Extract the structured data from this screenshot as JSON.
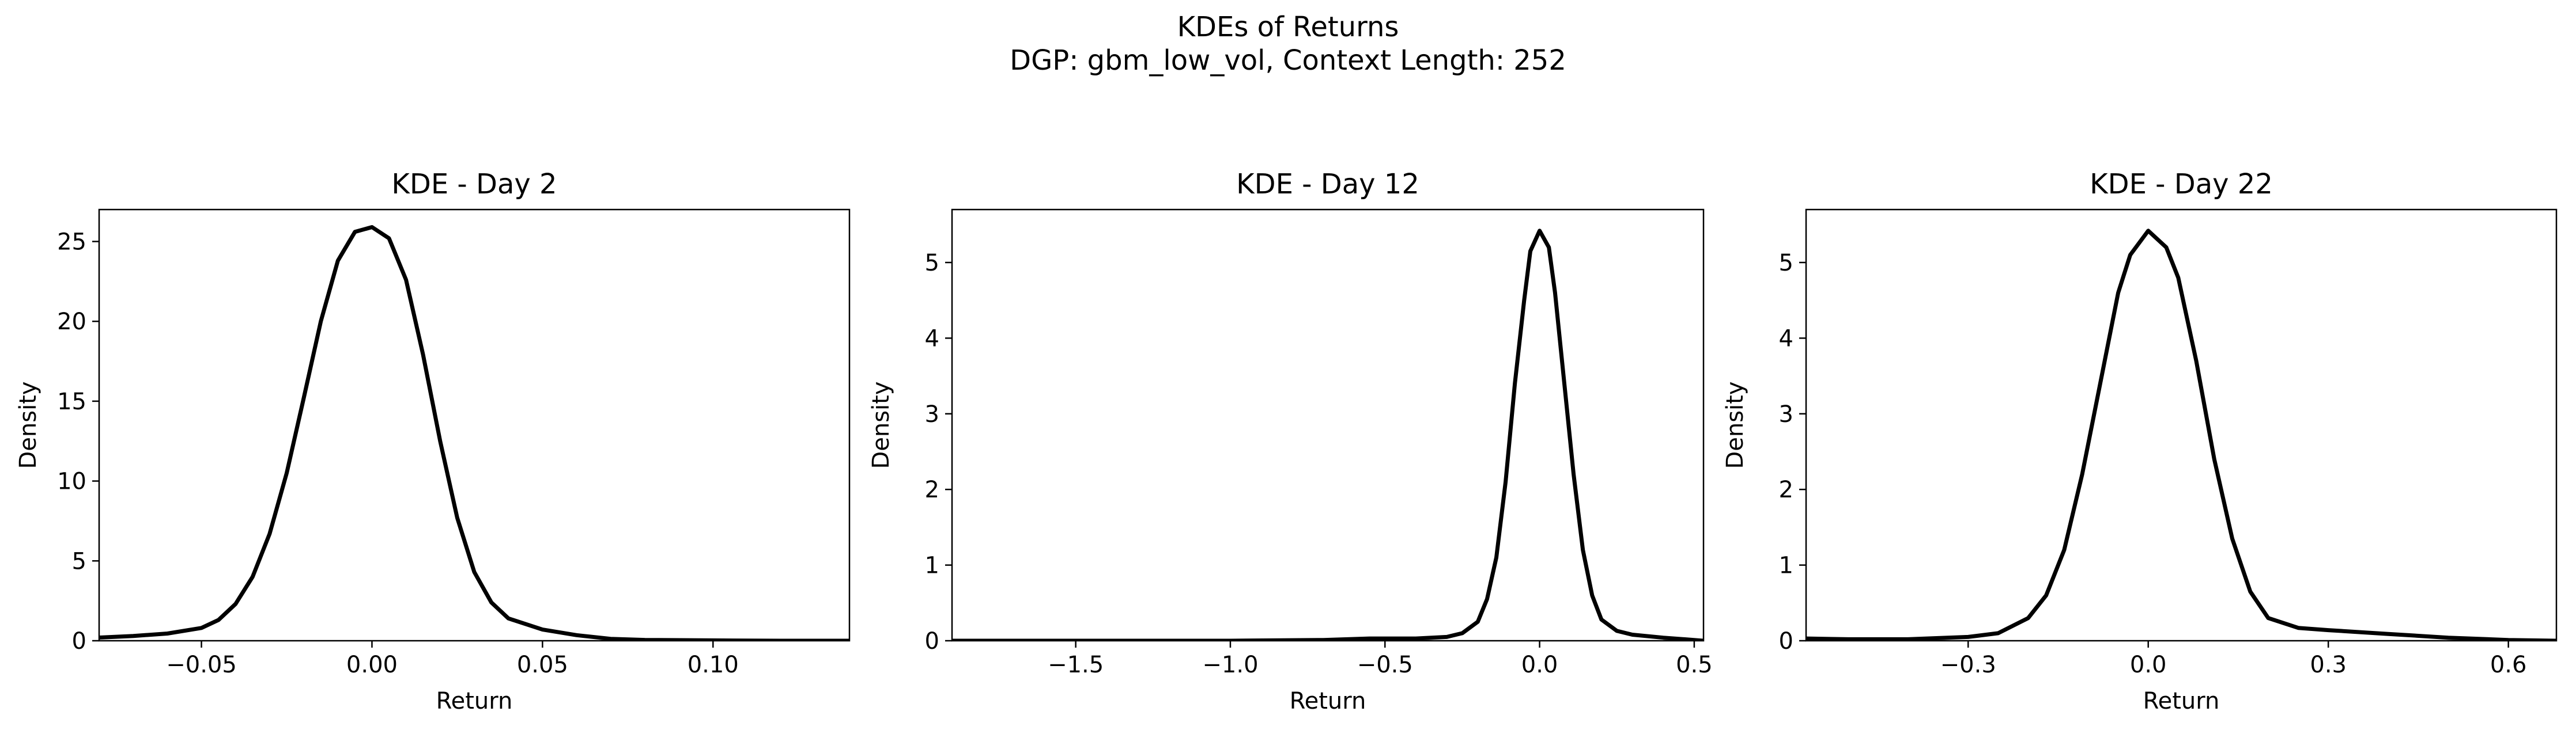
{
  "figure": {
    "suptitle_line1": "KDEs of Returns",
    "suptitle_line2": "DGP: gbm_low_vol, Context Length: 252"
  },
  "chart_data": [
    {
      "type": "line",
      "title": "KDE - Day 2",
      "xlabel": "Return",
      "ylabel": "Density",
      "xlim": [
        -0.08,
        0.14
      ],
      "ylim": [
        0,
        27
      ],
      "xticks": [
        -0.05,
        0.0,
        0.05,
        0.1
      ],
      "xticklabels": [
        "−0.05",
        "0.00",
        "0.05",
        "0.10"
      ],
      "yticks": [
        0,
        5,
        10,
        15,
        20,
        25
      ],
      "yticklabels": [
        "0",
        "5",
        "10",
        "15",
        "20",
        "25"
      ],
      "grid": false,
      "line_color": "#000000",
      "series": [
        {
          "x": [
            -0.08,
            -0.07,
            -0.06,
            -0.05,
            -0.045,
            -0.04,
            -0.035,
            -0.03,
            -0.025,
            -0.02,
            -0.015,
            -0.01,
            -0.005,
            0.0,
            0.005,
            0.01,
            0.015,
            0.02,
            0.025,
            0.03,
            0.035,
            0.04,
            0.05,
            0.06,
            0.07,
            0.08,
            0.1,
            0.12,
            0.14
          ],
          "y": [
            0.2,
            0.3,
            0.45,
            0.8,
            1.3,
            2.3,
            4.0,
            6.7,
            10.5,
            15.2,
            20.0,
            23.8,
            25.6,
            25.9,
            25.2,
            22.6,
            17.9,
            12.5,
            7.7,
            4.3,
            2.4,
            1.4,
            0.7,
            0.35,
            0.12,
            0.05,
            0.02,
            0.0,
            0.0
          ]
        }
      ]
    },
    {
      "type": "line",
      "title": "KDE - Day 12",
      "xlabel": "Return",
      "ylabel": "Density",
      "xlim": [
        -1.9,
        0.53
      ],
      "ylim": [
        0,
        5.7
      ],
      "xticks": [
        -1.5,
        -1.0,
        -0.5,
        0.0,
        0.5
      ],
      "xticklabels": [
        "−1.5",
        "−1.0",
        "−0.5",
        "0.0",
        "0.5"
      ],
      "yticks": [
        0,
        1,
        2,
        3,
        4,
        5
      ],
      "yticklabels": [
        "0",
        "1",
        "2",
        "3",
        "4",
        "5"
      ],
      "grid": false,
      "line_color": "#000000",
      "series": [
        {
          "x": [
            -1.9,
            -1.5,
            -1.0,
            -0.7,
            -0.55,
            -0.5,
            -0.4,
            -0.3,
            -0.25,
            -0.2,
            -0.17,
            -0.14,
            -0.11,
            -0.08,
            -0.05,
            -0.03,
            0.0,
            0.03,
            0.05,
            0.08,
            0.11,
            0.14,
            0.17,
            0.2,
            0.25,
            0.3,
            0.4,
            0.5,
            0.53
          ],
          "y": [
            0.0,
            0.0,
            0.0,
            0.01,
            0.03,
            0.03,
            0.03,
            0.05,
            0.1,
            0.25,
            0.55,
            1.1,
            2.1,
            3.4,
            4.5,
            5.15,
            5.42,
            5.2,
            4.6,
            3.4,
            2.2,
            1.2,
            0.6,
            0.28,
            0.13,
            0.08,
            0.04,
            0.01,
            0.0
          ]
        }
      ]
    },
    {
      "type": "line",
      "title": "KDE - Day 22",
      "xlabel": "Return",
      "ylabel": "Density",
      "xlim": [
        -0.57,
        0.68
      ],
      "ylim": [
        0,
        5.7
      ],
      "xticks": [
        -0.3,
        0.0,
        0.3,
        0.6
      ],
      "xticklabels": [
        "−0.3",
        "0.0",
        "0.3",
        "0.6"
      ],
      "yticks": [
        0,
        1,
        2,
        3,
        4,
        5
      ],
      "yticklabels": [
        "0",
        "1",
        "2",
        "3",
        "4",
        "5"
      ],
      "grid": false,
      "line_color": "#000000",
      "series": [
        {
          "x": [
            -0.57,
            -0.5,
            -0.4,
            -0.3,
            -0.25,
            -0.2,
            -0.17,
            -0.14,
            -0.11,
            -0.08,
            -0.05,
            -0.03,
            0.0,
            0.03,
            0.05,
            0.08,
            0.11,
            0.14,
            0.17,
            0.2,
            0.25,
            0.3,
            0.4,
            0.5,
            0.6,
            0.68
          ],
          "y": [
            0.03,
            0.02,
            0.02,
            0.05,
            0.1,
            0.3,
            0.6,
            1.2,
            2.2,
            3.4,
            4.6,
            5.1,
            5.42,
            5.2,
            4.8,
            3.7,
            2.4,
            1.35,
            0.65,
            0.3,
            0.17,
            0.14,
            0.09,
            0.04,
            0.01,
            0.0
          ]
        }
      ]
    }
  ]
}
